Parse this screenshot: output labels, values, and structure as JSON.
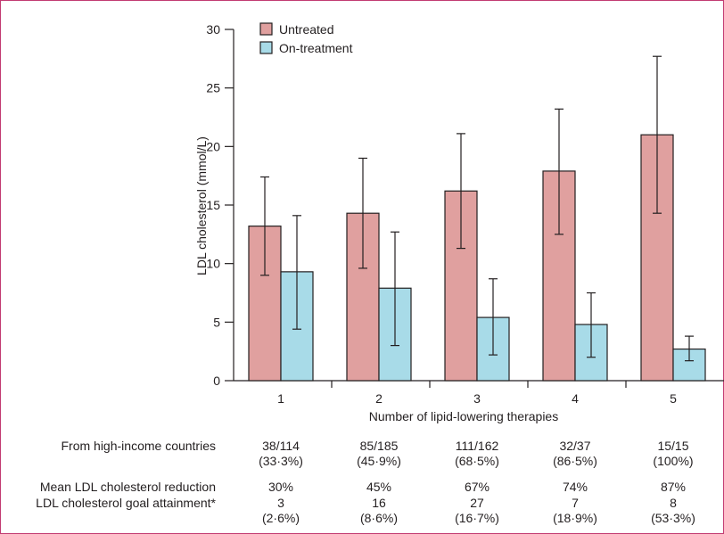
{
  "chart_data": {
    "type": "bar",
    "categories": [
      "1",
      "2",
      "3",
      "4",
      "5"
    ],
    "xlabel": "Number of lipid-lowering therapies",
    "ylabel": "LDL cholesterol (mmol/L)",
    "ylim": [
      0,
      30
    ],
    "yticks": [
      "0",
      "5",
      "10",
      "15",
      "20",
      "25",
      "30"
    ],
    "legend_position": "top-left",
    "grid": false,
    "series": [
      {
        "name": "Untreated",
        "color": "#e0a09f",
        "values": [
          13.2,
          14.3,
          16.2,
          17.9,
          21.0
        ],
        "error_low": [
          9.0,
          9.6,
          11.3,
          12.5,
          14.3
        ],
        "error_high": [
          17.4,
          19.0,
          21.1,
          23.2,
          27.7
        ]
      },
      {
        "name": "On-treatment",
        "color": "#a8dbe8",
        "values": [
          9.3,
          7.9,
          5.4,
          4.8,
          2.7
        ],
        "error_low": [
          4.4,
          3.0,
          2.2,
          2.0,
          1.7
        ],
        "error_high": [
          14.1,
          12.7,
          8.7,
          7.5,
          3.8
        ]
      }
    ]
  },
  "table": {
    "rows": [
      {
        "label": "From high-income countries",
        "cells": [
          [
            "38/114",
            "(33·3%)"
          ],
          [
            "85/185",
            "(45·9%)"
          ],
          [
            "111/162",
            "(68·5%)"
          ],
          [
            "32/37",
            "(86·5%)"
          ],
          [
            "15/15",
            "(100%)"
          ]
        ]
      },
      {
        "label": "Mean LDL cholesterol reduction",
        "cells": [
          [
            "30%"
          ],
          [
            "45%"
          ],
          [
            "67%"
          ],
          [
            "74%"
          ],
          [
            "87%"
          ]
        ]
      },
      {
        "label": "LDL cholesterol goal attainment*",
        "cells": [
          [
            "3",
            "(2·6%)"
          ],
          [
            "16",
            "(8·6%)"
          ],
          [
            "27",
            "(16·7%)"
          ],
          [
            "7",
            "(18·9%)"
          ],
          [
            "8",
            "(53·3%)"
          ]
        ]
      }
    ]
  }
}
